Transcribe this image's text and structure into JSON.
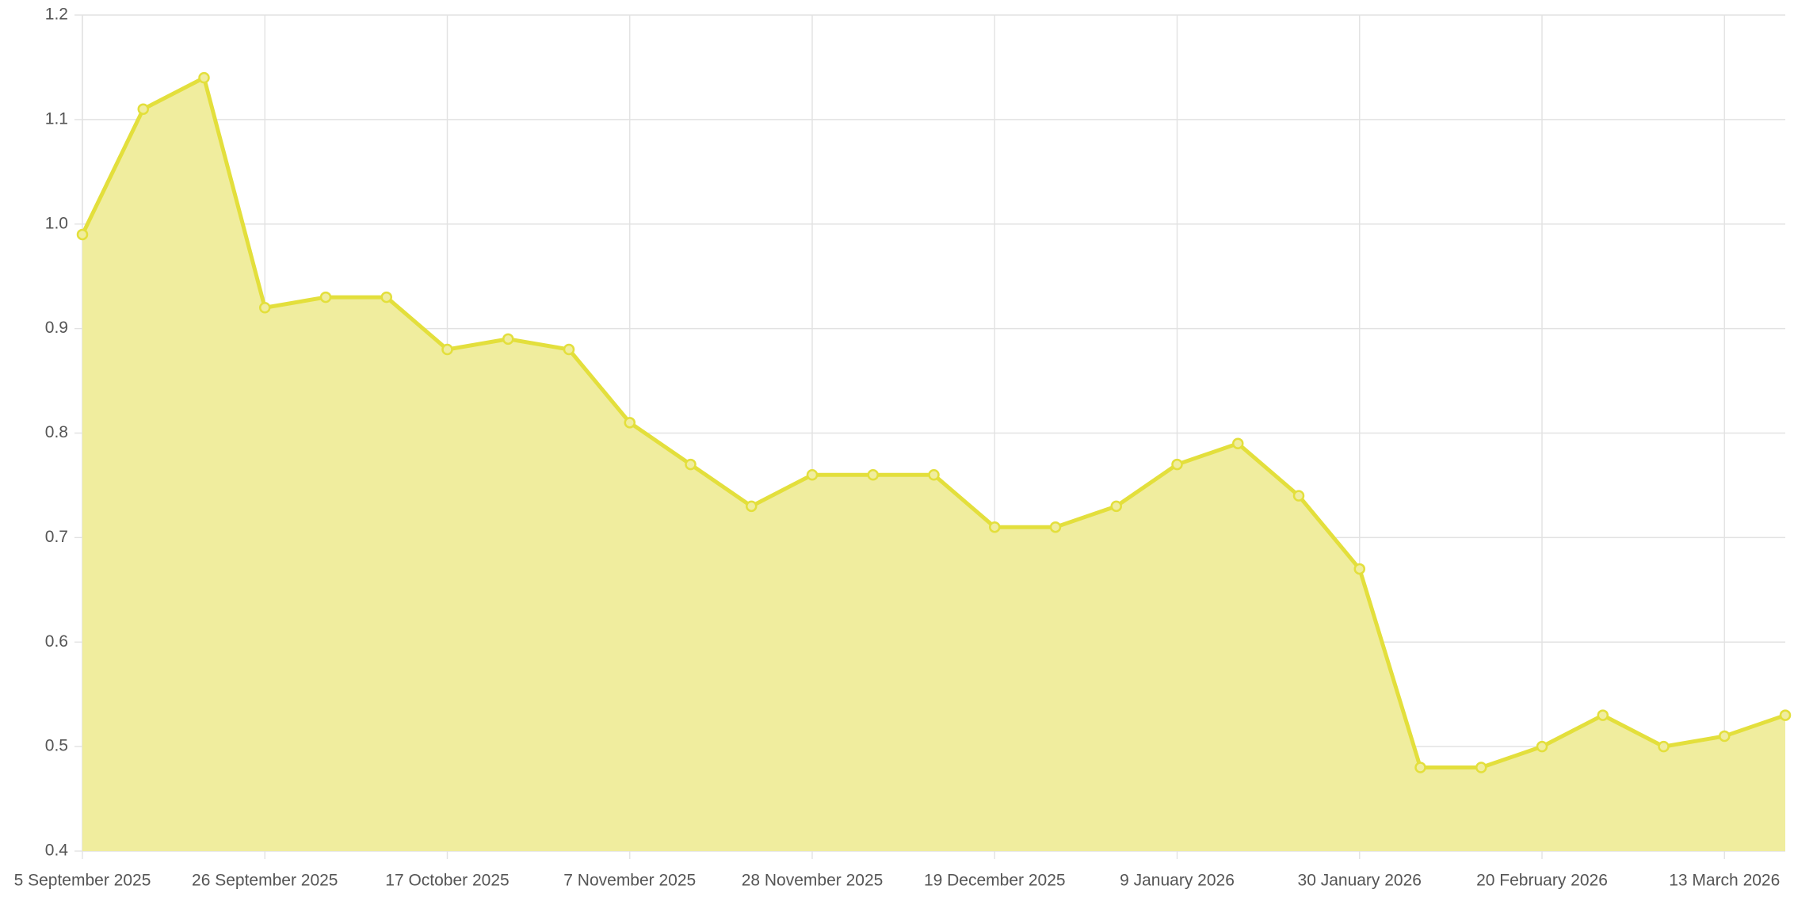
{
  "chart_data": {
    "type": "area",
    "x": [
      "2025-09-05",
      "2025-09-12",
      "2025-09-19",
      "2025-09-26",
      "2025-10-03",
      "2025-10-10",
      "2025-10-17",
      "2025-10-24",
      "2025-10-31",
      "2025-11-07",
      "2025-11-14",
      "2025-11-21",
      "2025-11-28",
      "2025-12-05",
      "2025-12-12",
      "2025-12-19",
      "2025-12-26",
      "2026-01-02",
      "2026-01-09",
      "2026-01-16",
      "2026-01-23",
      "2026-01-30",
      "2026-02-06",
      "2026-02-13",
      "2026-02-20",
      "2026-02-27",
      "2026-03-06",
      "2026-03-13",
      "2026-03-20"
    ],
    "series": [
      {
        "color": "#e3df3c",
        "fill": "#f0ed9e",
        "values": [
          0.99,
          1.11,
          1.14,
          0.92,
          0.93,
          0.93,
          0.88,
          0.89,
          0.88,
          0.81,
          0.77,
          0.73,
          0.76,
          0.76,
          0.76,
          0.71,
          0.71,
          0.73,
          0.77,
          0.79,
          0.74,
          0.67,
          0.48,
          0.48,
          0.5,
          0.53,
          0.5,
          0.51,
          0.53
        ]
      }
    ],
    "xlim": [
      "2025-09-05",
      "2026-03-20"
    ],
    "xticks": [
      {
        "value": "2025-09-05",
        "label": "5 September 2025"
      },
      {
        "value": "2025-09-26",
        "label": "26 September 2025"
      },
      {
        "value": "2025-10-17",
        "label": "17 October 2025"
      },
      {
        "value": "2025-11-07",
        "label": "7 November 2025"
      },
      {
        "value": "2025-11-28",
        "label": "28 November 2025"
      },
      {
        "value": "2025-12-19",
        "label": "19 December 2025"
      },
      {
        "value": "2026-01-09",
        "label": "9 January 2026"
      },
      {
        "value": "2026-01-30",
        "label": "30 January 2026"
      },
      {
        "value": "2026-02-20",
        "label": "20 February 2026"
      },
      {
        "value": "2026-03-13",
        "label": "13 March 2026"
      }
    ],
    "ylim": [
      0.4,
      1.2
    ],
    "yticks": [
      0.4,
      0.5,
      0.6,
      0.7,
      0.8,
      0.9,
      {
        "value": 1,
        "label": "1.0"
      },
      1.1,
      1.2
    ],
    "grid": true
  }
}
